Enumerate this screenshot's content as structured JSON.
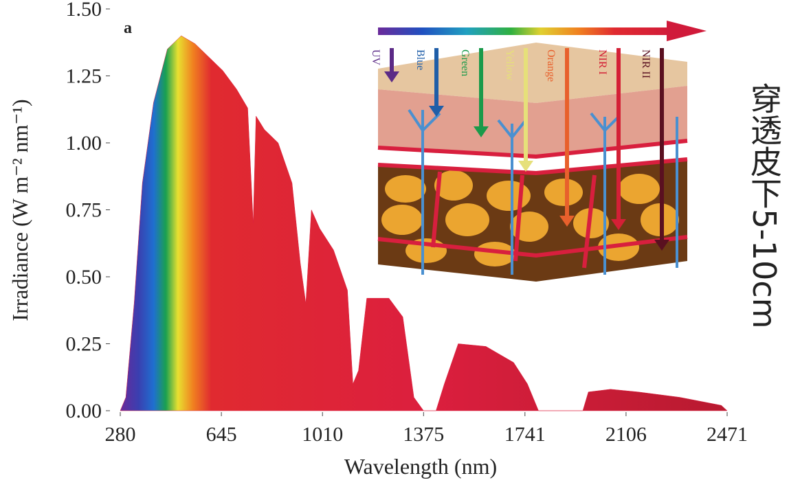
{
  "chart_data": {
    "type": "area",
    "panel_label": "a",
    "x_label": "Wavelength (nm)",
    "y_label": "Irradiance (W m⁻² nm⁻¹)",
    "x": [
      280,
      300,
      330,
      360,
      400,
      450,
      500,
      550,
      600,
      650,
      700,
      740,
      760,
      770,
      800,
      850,
      900,
      930,
      950,
      970,
      1000,
      1050,
      1100,
      1120,
      1140,
      1170,
      1250,
      1300,
      1340,
      1375,
      1420,
      1450,
      1500,
      1600,
      1700,
      1750,
      1790,
      1950,
      1970,
      2050,
      2150,
      2300,
      2450,
      2471
    ],
    "values": [
      0,
      0.05,
      0.4,
      0.85,
      1.15,
      1.35,
      1.4,
      1.37,
      1.32,
      1.27,
      1.2,
      1.13,
      0.7,
      1.1,
      1.05,
      1.0,
      0.85,
      0.55,
      0.4,
      0.75,
      0.68,
      0.6,
      0.45,
      0.1,
      0.15,
      0.42,
      0.42,
      0.35,
      0.05,
      0,
      0,
      0.1,
      0.25,
      0.24,
      0.18,
      0.1,
      0,
      0,
      0.07,
      0.08,
      0.07,
      0.05,
      0.02,
      0
    ],
    "color": "#dc1f3e",
    "xlim": [
      280,
      2471
    ],
    "xticks": [
      280,
      645,
      1010,
      1375,
      1741,
      2106,
      2471
    ],
    "ylim": [
      0,
      1.5
    ],
    "yticks": [
      {
        "value": 0,
        "label": "0.00"
      },
      {
        "value": 0.25,
        "label": "0.25"
      },
      {
        "value": 0.5,
        "label": "0.50"
      },
      {
        "value": 0.75,
        "label": "0.75"
      },
      {
        "value": 1,
        "label": "1.00"
      },
      {
        "value": 1.25,
        "label": "1.25"
      },
      {
        "value": 1.5,
        "label": "1.50"
      }
    ],
    "grid": false,
    "inset_labels": [
      "UV",
      "Blue",
      "Green",
      "Yellow",
      "Orange",
      "NIR I",
      "NIR II"
    ],
    "side_text": "穿透皮下5-10cm"
  }
}
